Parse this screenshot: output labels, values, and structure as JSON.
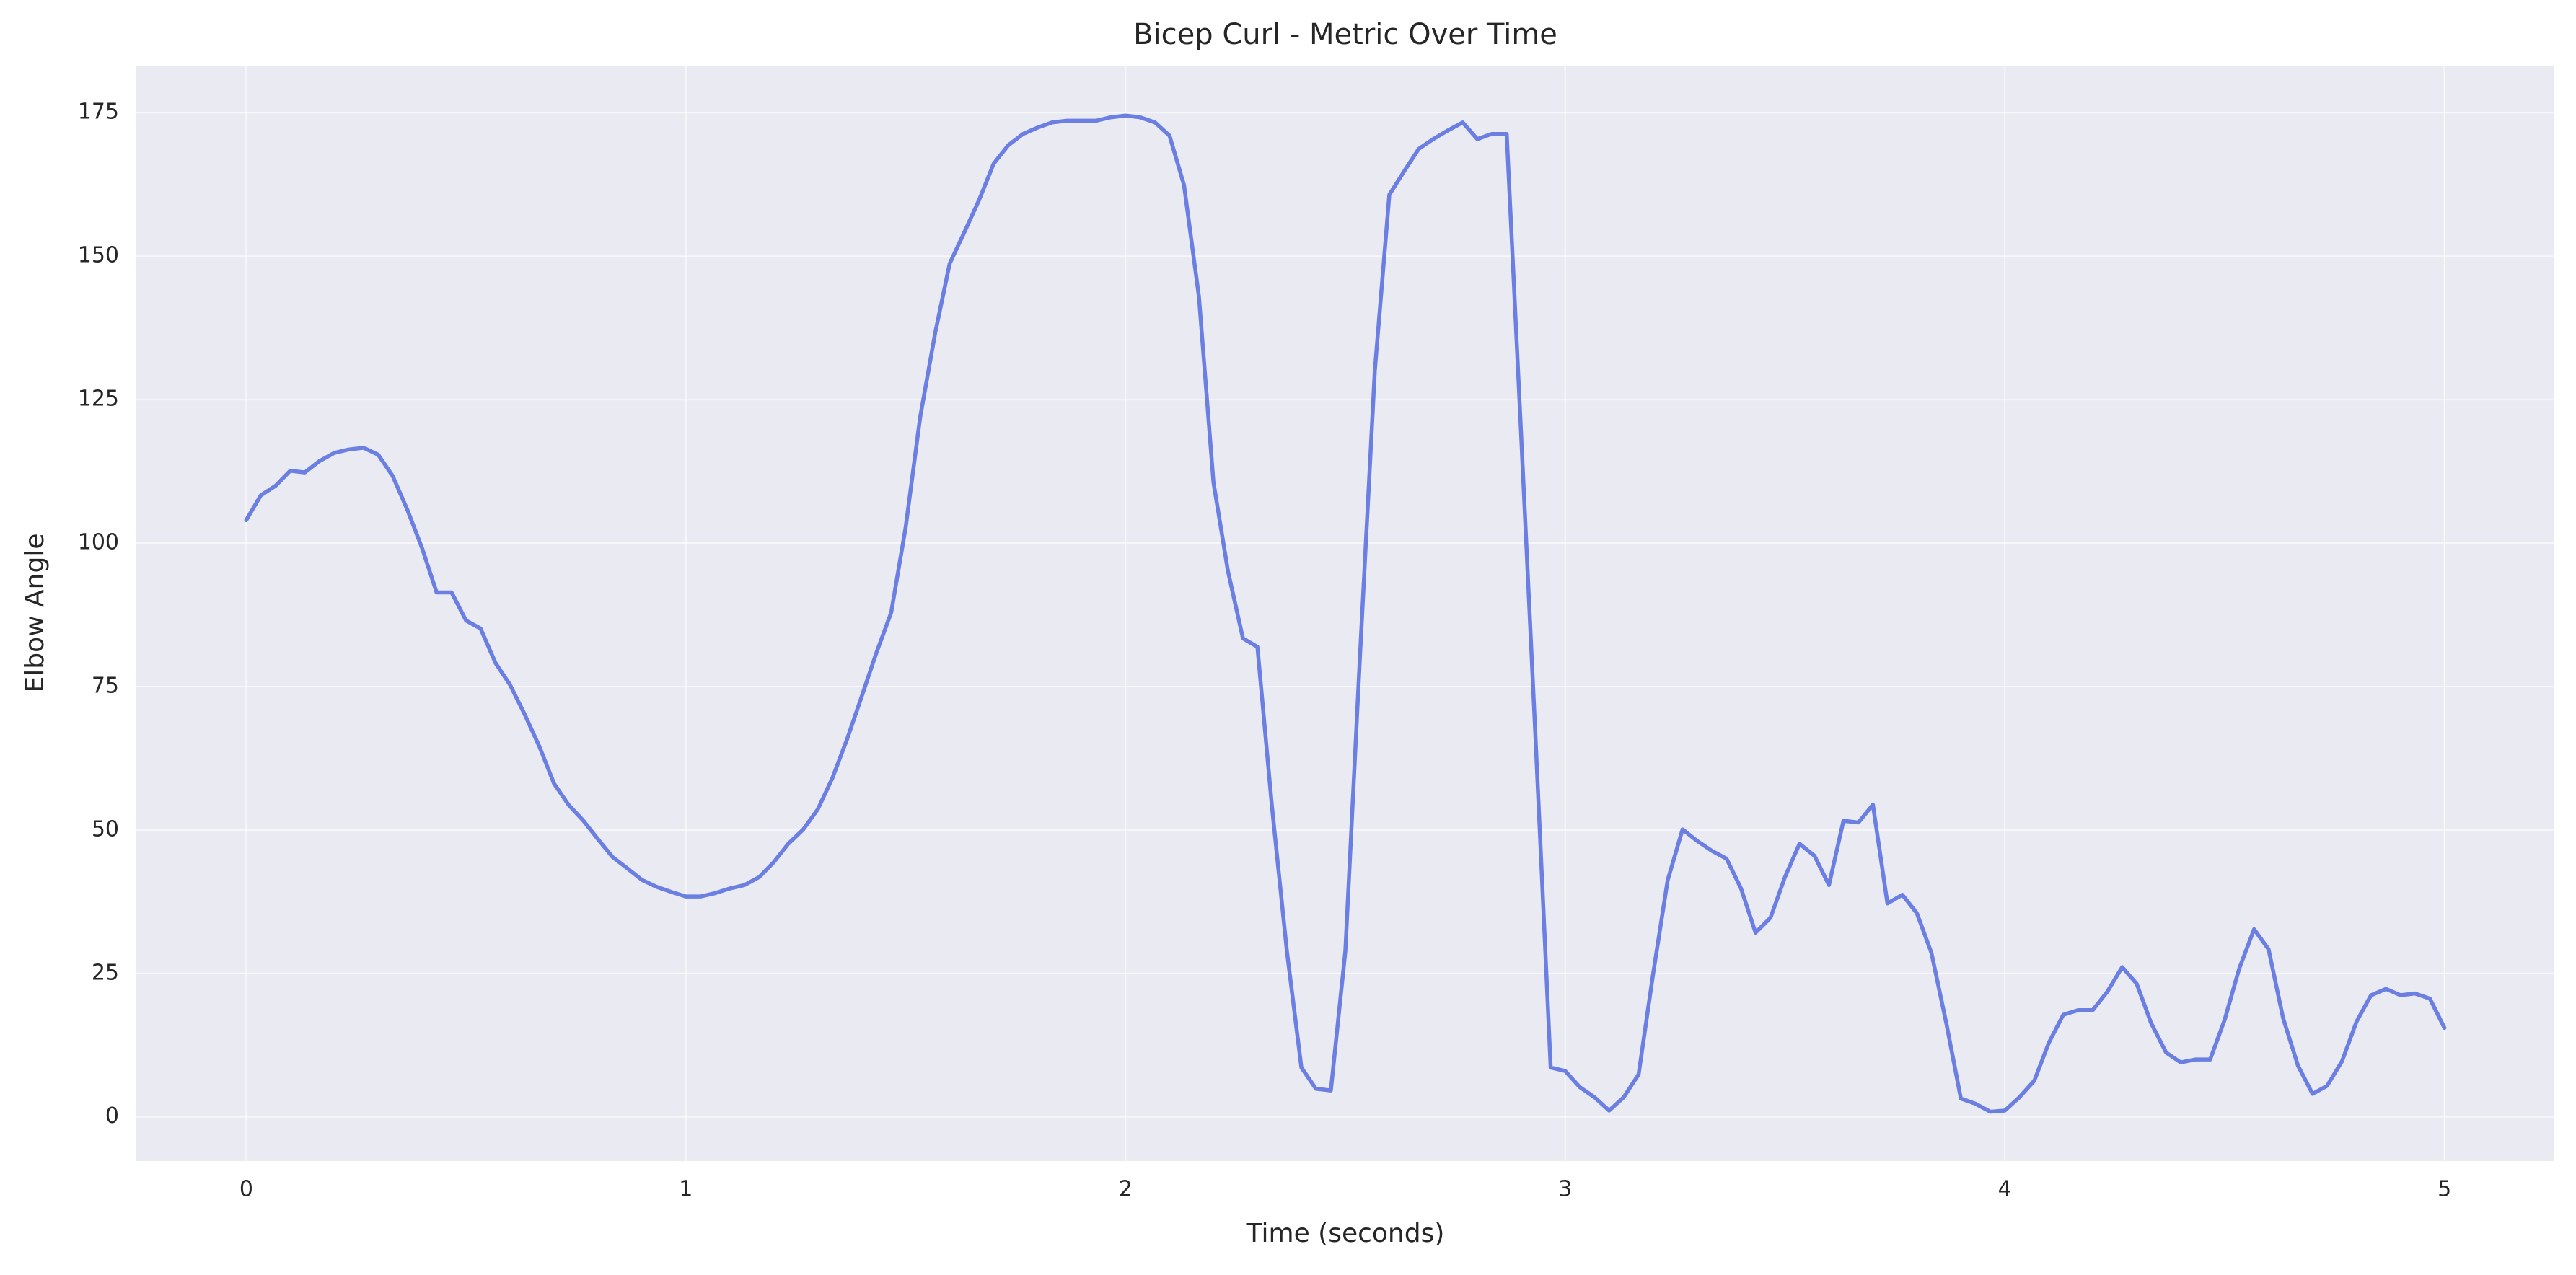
{
  "chart_data": {
    "type": "line",
    "title": "Bicep Curl - Metric Over Time",
    "x_label": "Time (seconds)",
    "y_label": "Elbow Angle",
    "x": [
      0,
      0.033,
      0.067,
      0.1,
      0.133,
      0.167,
      0.2,
      0.233,
      0.267,
      0.3,
      0.333,
      0.367,
      0.4,
      0.433,
      0.467,
      0.5,
      0.533,
      0.567,
      0.6,
      0.633,
      0.667,
      0.7,
      0.733,
      0.767,
      0.8,
      0.833,
      0.867,
      0.9,
      0.933,
      0.967,
      1.0,
      1.033,
      1.067,
      1.1,
      1.133,
      1.167,
      1.2,
      1.233,
      1.267,
      1.3,
      1.333,
      1.367,
      1.4,
      1.433,
      1.467,
      1.5,
      1.533,
      1.567,
      1.6,
      1.633,
      1.667,
      1.7,
      1.733,
      1.767,
      1.8,
      1.833,
      1.867,
      1.9,
      1.933,
      1.967,
      2.0,
      2.033,
      2.067,
      2.1,
      2.133,
      2.167,
      2.2,
      2.233,
      2.267,
      2.3,
      2.333,
      2.367,
      2.4,
      2.433,
      2.467,
      2.5,
      2.533,
      2.567,
      2.6,
      2.633,
      2.667,
      2.7,
      2.733,
      2.767,
      2.8,
      2.833,
      2.867,
      2.9,
      2.933,
      2.967,
      3.0,
      3.033,
      3.067,
      3.1,
      3.133,
      3.167,
      3.2,
      3.233,
      3.267,
      3.3,
      3.333,
      3.367,
      3.4,
      3.433,
      3.467,
      3.5,
      3.533,
      3.567,
      3.6,
      3.633,
      3.667,
      3.7,
      3.733,
      3.767,
      3.8,
      3.833,
      3.867,
      3.9,
      3.933,
      3.967,
      4.0,
      4.033,
      4.067,
      4.1,
      4.133,
      4.167,
      4.2,
      4.233,
      4.267,
      4.3,
      4.333,
      4.367,
      4.4,
      4.433,
      4.467,
      4.5,
      4.533,
      4.567,
      4.6,
      4.633,
      4.667,
      4.7,
      4.733,
      4.767,
      4.8,
      4.833,
      4.867,
      4.9,
      4.933,
      4.967,
      5.0
    ],
    "series": [
      {
        "name": "Elbow Angle",
        "color": "#6b7fe3",
        "values": [
          104,
          108.3,
          110,
          112.6,
          112.3,
          114.3,
          115.7,
          116.3,
          116.6,
          115.4,
          111.7,
          105.7,
          99.1,
          91.4,
          91.4,
          86.5,
          85.1,
          79.1,
          75.3,
          70.2,
          64.5,
          58.1,
          54.4,
          51.6,
          48.4,
          45.3,
          43.3,
          41.3,
          40.1,
          39.2,
          38.4,
          38.4,
          39,
          39.8,
          40.4,
          41.8,
          44.4,
          47.6,
          50.1,
          53.6,
          59,
          65.9,
          73.3,
          80.8,
          87.9,
          102.8,
          122,
          136.6,
          148.7,
          154.1,
          159.8,
          166.1,
          169.3,
          171.3,
          172.4,
          173.3,
          173.6,
          173.6,
          173.6,
          174.2,
          174.5,
          174.2,
          173.3,
          171,
          162.4,
          142.9,
          110.6,
          95.1,
          83.4,
          81.9,
          54.1,
          28.9,
          8.6,
          4.9,
          4.6,
          28.9,
          79.9,
          130,
          160.7,
          164.7,
          168.7,
          170.4,
          171.9,
          173.3,
          170.4,
          171.3,
          171.3,
          118.6,
          65.3,
          8.6,
          8,
          5.2,
          3.4,
          1.1,
          3.4,
          7.4,
          24.9,
          41.2,
          50.1,
          48.1,
          46.4,
          45,
          39.8,
          32.1,
          34.7,
          41.8,
          47.6,
          45.5,
          40.4,
          51.6,
          51.3,
          54.4,
          37.2,
          38.7,
          35.5,
          28.6,
          16.3,
          3.2,
          2.3,
          0.9,
          1.1,
          3.4,
          6.3,
          12.9,
          17.8,
          18.6,
          18.6,
          21.8,
          26.1,
          23.2,
          16.3,
          11.2,
          9.5,
          10,
          10,
          16.9,
          25.8,
          32.7,
          29.2,
          17.2,
          8.9,
          4,
          5.4,
          9.7,
          16.6,
          21.2,
          22.3,
          21.2,
          21.5,
          20.6,
          15.5
        ]
      }
    ],
    "xlim": [
      -0.25,
      5.25
    ],
    "ylim": [
      -7.7,
      183.2
    ],
    "xticks": [
      0,
      1,
      2,
      3,
      4,
      5
    ],
    "yticks": [
      0,
      25,
      50,
      75,
      100,
      125,
      150,
      175
    ],
    "grid": true
  }
}
